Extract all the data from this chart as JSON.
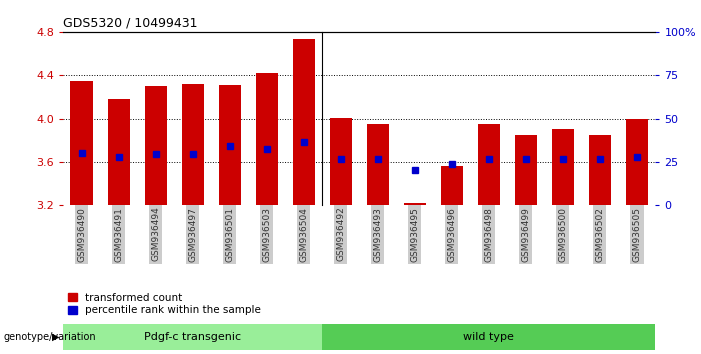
{
  "title": "GDS5320 / 10499431",
  "samples": [
    "GSM936490",
    "GSM936491",
    "GSM936494",
    "GSM936497",
    "GSM936501",
    "GSM936503",
    "GSM936504",
    "GSM936492",
    "GSM936493",
    "GSM936495",
    "GSM936496",
    "GSM936498",
    "GSM936499",
    "GSM936500",
    "GSM936502",
    "GSM936505"
  ],
  "transformed_count": [
    4.35,
    4.18,
    4.3,
    4.32,
    4.31,
    4.42,
    4.73,
    4.01,
    3.95,
    3.22,
    3.56,
    3.95,
    3.85,
    3.9,
    3.85,
    4.0
  ],
  "percentile_rank": [
    3.68,
    3.65,
    3.67,
    3.67,
    3.75,
    3.72,
    3.78,
    3.63,
    3.63,
    3.53,
    3.58,
    3.63,
    3.63,
    3.63,
    3.63,
    3.65
  ],
  "ylim_left": [
    3.2,
    4.8
  ],
  "ylim_right": [
    0,
    100
  ],
  "yticks_left": [
    3.2,
    3.6,
    4.0,
    4.4,
    4.8
  ],
  "yticks_right": [
    0,
    25,
    50,
    75,
    100
  ],
  "ytick_labels_right": [
    "0",
    "25",
    "50",
    "75",
    "100%"
  ],
  "bar_bottom": 3.2,
  "bar_color": "#cc0000",
  "pct_color": "#0000cc",
  "group1_label": "Pdgf-c transgenic",
  "group2_label": "wild type",
  "group1_color": "#99ee99",
  "group2_color": "#55cc55",
  "n_group1": 7,
  "n_group2": 9,
  "genotype_label": "genotype/variation",
  "legend_bar_label": "transformed count",
  "legend_pct_label": "percentile rank within the sample",
  "bg_color": "#ffffff",
  "left_axis_color": "#cc0000",
  "right_axis_color": "#0000cc",
  "xtick_bg_color": "#cccccc",
  "grid_color": "#000000"
}
